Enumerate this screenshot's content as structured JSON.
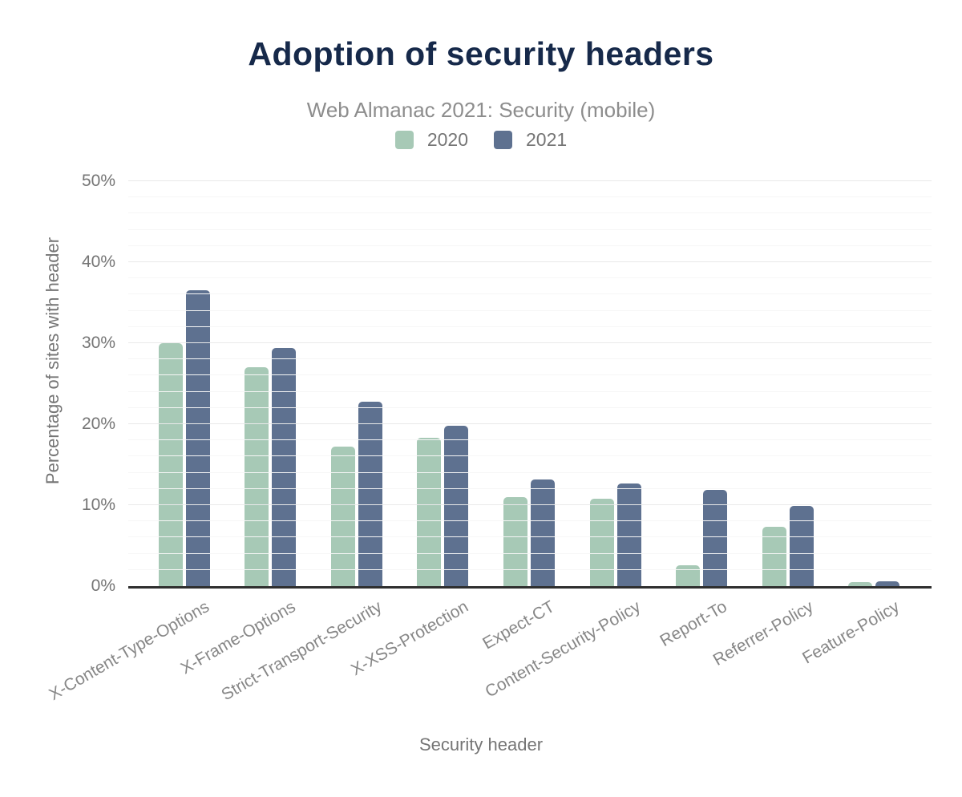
{
  "chart_data": {
    "type": "bar",
    "title": "Adoption of security headers",
    "subtitle": "Web Almanac 2021: Security (mobile)",
    "xlabel": "Security header",
    "ylabel": "Percentage of sites with header",
    "ylim": [
      0,
      50
    ],
    "ytick_step_major": 10,
    "ytick_step_minor": 2,
    "ytick_labels": [
      "0%",
      "10%",
      "20%",
      "30%",
      "40%",
      "50%"
    ],
    "grid": "horizontal, minor lines every 2%, major lines every 10%",
    "legend_position": "top-center",
    "categories": [
      "X-Content-Type-Options",
      "X-Frame-Options",
      "Strict-Transport-Security",
      "X-XSS-Protection",
      "Expect-CT",
      "Content-Security-Policy",
      "Report-To",
      "Referrer-Policy",
      "Feature-Policy"
    ],
    "series": [
      {
        "name": "2020",
        "color": "#a7c9b6",
        "values": [
          30.0,
          27.0,
          17.2,
          18.3,
          11.0,
          10.8,
          2.6,
          7.3,
          0.5
        ]
      },
      {
        "name": "2021",
        "color": "#5e7190",
        "values": [
          36.5,
          29.4,
          22.8,
          19.8,
          13.2,
          12.7,
          11.9,
          9.9,
          0.6
        ]
      }
    ]
  },
  "colors": {
    "background": "#ffffff",
    "title_text": "#16294a",
    "subtitle_text": "#8d8d8d",
    "axis_text": "#757575",
    "category_text": "#878787",
    "axis_line": "#2f2f2f",
    "gridline_major": "#e9e9e9",
    "gridline_minor": "#f6f6f6",
    "series_2020": "#a7c9b6",
    "series_2021": "#5e7190"
  }
}
